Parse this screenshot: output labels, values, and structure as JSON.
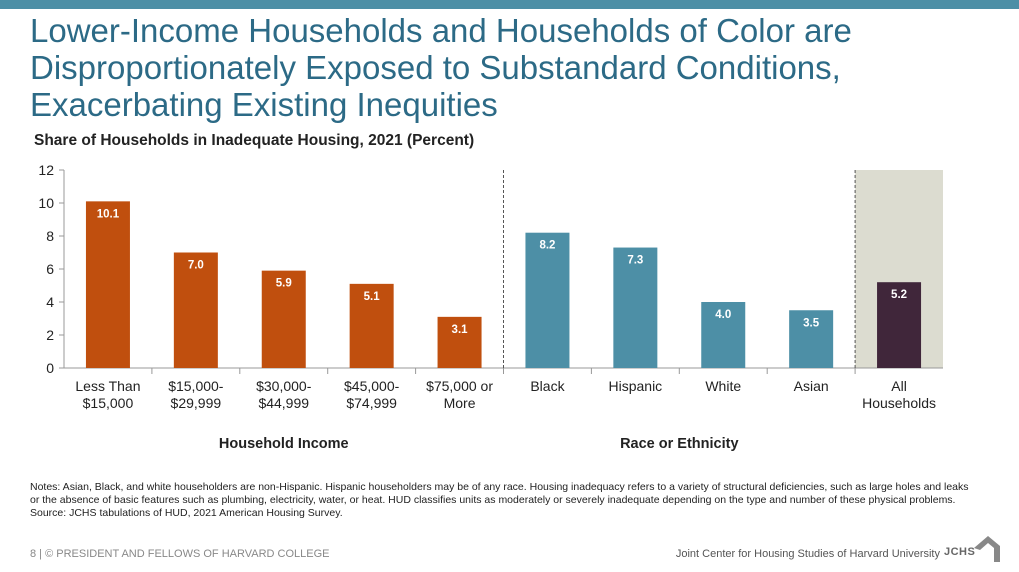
{
  "slide": {
    "title": "Lower-Income Households and Households of Color are\nDisproportionately Exposed to Substandard Conditions,\nExacerbating Existing Inequities"
  },
  "colors": {
    "income": "#c04f0e",
    "race": "#4d8fa6",
    "all": "#40263a",
    "highlight_bg": "#dcdcd0",
    "title": "#2c6a86"
  },
  "chart_data": {
    "type": "bar",
    "title": "Share of Households in Inadequate Housing, 2021 (Percent)",
    "categories": [
      [
        "Less Than",
        "$15,000"
      ],
      [
        "$15,000-",
        "$29,999"
      ],
      [
        "$30,000-",
        "$44,999"
      ],
      [
        "$45,000-",
        "$74,999"
      ],
      [
        "$75,000 or",
        "More"
      ],
      [
        "Black"
      ],
      [
        "Hispanic"
      ],
      [
        "White"
      ],
      [
        "Asian"
      ],
      [
        "All",
        "Households"
      ]
    ],
    "values": [
      10.1,
      7.0,
      5.9,
      5.1,
      3.1,
      8.2,
      7.3,
      4.0,
      3.5,
      5.2
    ],
    "value_labels": [
      "10.1",
      "7.0",
      "5.9",
      "5.1",
      "3.1",
      "8.2",
      "7.3",
      "4.0",
      "3.5",
      "5.2"
    ],
    "groups": [
      {
        "name": "Household Income",
        "start": 0,
        "end": 4
      },
      {
        "name": "Race or Ethnicity",
        "start": 5,
        "end": 8
      },
      {
        "name": "",
        "start": 9,
        "end": 9
      }
    ],
    "ylim": [
      0,
      12
    ],
    "yticks": [
      0,
      2,
      4,
      6,
      8,
      10,
      12
    ],
    "grid": false
  },
  "notes": {
    "text": "Notes: Asian, Black, and white householders are non-Hispanic. Hispanic householders may be of any race. Housing inadequacy refers to a variety of structural deficiencies, such as large holes and leaks or the absence of basic features such as plumbing, electricity, water, or heat. HUD classifies units as moderately or severely inadequate depending on the type and number of these physical problems.",
    "source": "Source: JCHS tabulations of HUD, 2021 American Housing Survey."
  },
  "footer": {
    "left": "8 | © PRESIDENT AND FELLOWS OF HARVARD COLLEGE",
    "right": "Joint Center for Housing Studies of Harvard University",
    "logo": "JCHS"
  }
}
